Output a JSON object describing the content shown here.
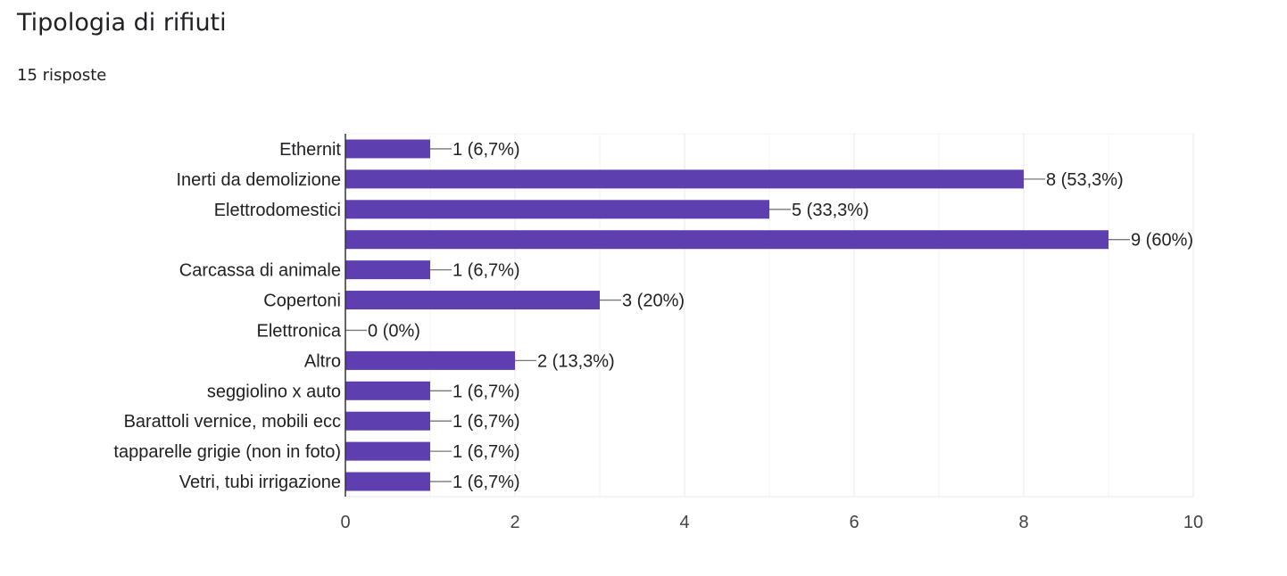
{
  "title": "Tipologia di rifiuti",
  "subtitle": "15 risposte",
  "colors": {
    "bar": "#5e3fb0",
    "grid": "#e8e8e8",
    "axis": "#333333",
    "leader": "#777777"
  },
  "chart_data": {
    "type": "bar",
    "orientation": "horizontal",
    "categories": [
      "Ethernit",
      "Inerti da demolizione",
      "Elettrodomestici",
      "",
      "Carcassa di animale",
      "Copertoni",
      "Elettronica",
      "Altro",
      "seggiolino x auto",
      "Barattoli vernice, mobili ecc",
      "tapparelle grigie (non in foto)",
      "Vetri, tubi irrigazione"
    ],
    "values": [
      1,
      8,
      5,
      9,
      1,
      3,
      0,
      2,
      1,
      1,
      1,
      1
    ],
    "data_labels": [
      "1 (6,7%)",
      "8 (53,3%)",
      "5 (33,3%)",
      "9 (60%)",
      "1 (6,7%)",
      "3 (20%)",
      "0 (0%)",
      "2 (13,3%)",
      "1 (6,7%)",
      "1 (6,7%)",
      "1 (6,7%)",
      "1 (6,7%)"
    ],
    "xlim": [
      0,
      10
    ],
    "xticks": [
      0,
      2,
      4,
      6,
      8,
      10
    ],
    "grid": true
  }
}
